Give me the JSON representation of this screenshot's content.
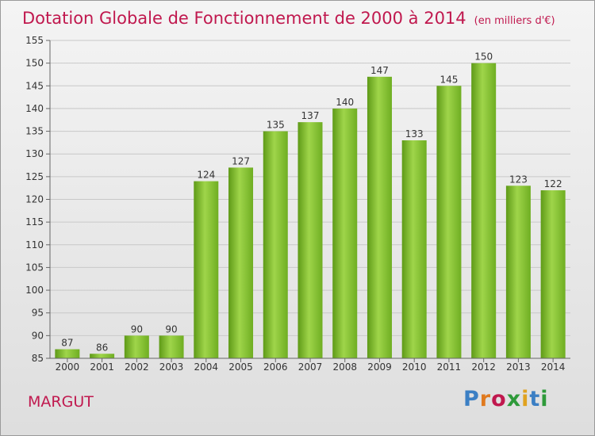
{
  "title": "Dotation Globale de Fonctionnement de 2000 à 2014",
  "unit": "(en milliers d'€)",
  "commune": "MARGUT",
  "logo": {
    "text": "Proxiti",
    "colors": [
      "#3b7fc4",
      "#e07a1f",
      "#c0184e",
      "#2e9a3a",
      "#e0a21f",
      "#3b7fc4",
      "#2e9a3a"
    ]
  },
  "chart_data": {
    "type": "bar",
    "categories": [
      "2000",
      "2001",
      "2002",
      "2003",
      "2004",
      "2005",
      "2006",
      "2007",
      "2008",
      "2009",
      "2010",
      "2011",
      "2012",
      "2013",
      "2014"
    ],
    "values": [
      87,
      86,
      90,
      90,
      124,
      127,
      135,
      137,
      140,
      147,
      133,
      145,
      150,
      123,
      122
    ],
    "ylim": [
      85,
      155
    ],
    "yticks": [
      85,
      90,
      95,
      100,
      105,
      110,
      115,
      120,
      125,
      130,
      135,
      140,
      145,
      150,
      155
    ],
    "grid": true,
    "bar_color": "#7bbf2a"
  }
}
